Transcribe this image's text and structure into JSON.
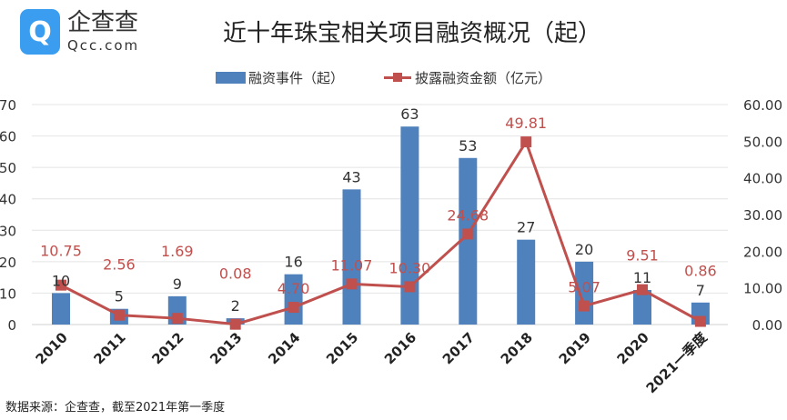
{
  "logo": {
    "cn": "企查查",
    "en": "Qcc.com"
  },
  "title": "近十年珠宝相关项目融资概况（起）",
  "source": "数据来源：企查查，截至2021年第一季度",
  "chart_data": {
    "type": "bar+line",
    "title": "近十年珠宝相关项目融资概况（起）",
    "categories": [
      "2010",
      "2011",
      "2012",
      "2013",
      "2014",
      "2015",
      "2016",
      "2017",
      "2018",
      "2019",
      "2020",
      "2021一季度"
    ],
    "series": [
      {
        "name": "融资事件（起）",
        "type": "bar",
        "axis": "left",
        "color": "#4f81bd",
        "values": [
          10,
          5,
          9,
          2,
          16,
          43,
          63,
          53,
          27,
          20,
          11,
          7
        ]
      },
      {
        "name": "披露融资金额（亿元）",
        "type": "line",
        "axis": "right",
        "color": "#c0504d",
        "values": [
          10.75,
          2.56,
          1.69,
          0.08,
          4.7,
          11.07,
          10.3,
          24.68,
          49.81,
          5.07,
          9.51,
          0.86
        ]
      }
    ],
    "left_axis": {
      "range": [
        0,
        70
      ],
      "ticks": [
        "0",
        "10",
        "20",
        "30",
        "40",
        "50",
        "60",
        "70"
      ]
    },
    "right_axis": {
      "range": [
        0,
        60
      ],
      "ticks": [
        "0.00",
        "10.00",
        "20.00",
        "30.00",
        "40.00",
        "50.00",
        "60.00"
      ]
    },
    "grid": true,
    "legend": "top"
  }
}
